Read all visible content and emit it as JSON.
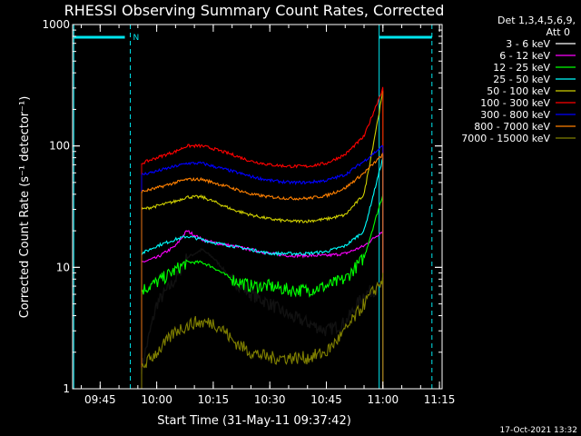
{
  "chart_data": {
    "type": "line",
    "title": "RHESSI Observing Summary Count Rates, Corrected",
    "xlabel": "Start Time (31-May-11 09:37:42)",
    "ylabel": "Corrected Count Rate (s⁻¹ detector⁻¹)",
    "yscale": "log",
    "ylim": [
      1,
      1000
    ],
    "xlim_minutes_after_0937": [
      0,
      98
    ],
    "x_ticks": [
      "09:45",
      "10:00",
      "10:15",
      "10:30",
      "10:45",
      "11:00",
      "11:15"
    ],
    "y_ticks": [
      "1",
      "10",
      "100",
      "1000"
    ],
    "legend_header": [
      "Det 1,3,4,5,6,9,",
      "Att 0"
    ],
    "footer_date": "17-Oct-2021 13:32",
    "night_marker": "N",
    "colors": {
      "background": "#000000",
      "axes": "#ffffff",
      "marker": "#00e5ee"
    },
    "series": [
      {
        "name": "3 - 6 keV",
        "color": "#000000",
        "x": [
          "09:56",
          "10:00",
          "10:05",
          "10:08",
          "10:12",
          "10:15",
          "10:20",
          "10:25",
          "10:30",
          "10:35",
          "10:40",
          "10:45",
          "10:50",
          "10:55",
          "11:00"
        ],
        "y": [
          1.5,
          5,
          8,
          12,
          14,
          12,
          8,
          6,
          5,
          4,
          3.5,
          3,
          3.5,
          6,
          7
        ]
      },
      {
        "name": "6 - 12 keV",
        "color": "#ff00ff",
        "x": [
          "09:56",
          "10:00",
          "10:05",
          "10:08",
          "10:12",
          "10:15",
          "10:20",
          "10:25",
          "10:30",
          "10:35",
          "10:40",
          "10:45",
          "10:50",
          "10:55",
          "11:00"
        ],
        "y": [
          11,
          12,
          15,
          20,
          17,
          16,
          15,
          14,
          13,
          12.5,
          12.5,
          12.5,
          13,
          15,
          20
        ]
      },
      {
        "name": "12 - 25 keV",
        "color": "#00ff00",
        "x": [
          "09:56",
          "10:00",
          "10:05",
          "10:08",
          "10:12",
          "10:15",
          "10:20",
          "10:25",
          "10:30",
          "10:35",
          "10:40",
          "10:45",
          "10:50",
          "10:55",
          "11:00"
        ],
        "y": [
          6.5,
          7.5,
          9.5,
          11,
          11,
          10,
          8,
          7,
          7,
          6.5,
          6.5,
          7,
          8,
          12,
          40
        ]
      },
      {
        "name": "25 - 50 keV",
        "color": "#00ffff",
        "x": [
          "09:56",
          "10:00",
          "10:05",
          "10:08",
          "10:12",
          "10:15",
          "10:20",
          "10:25",
          "10:30",
          "10:35",
          "10:40",
          "10:45",
          "10:50",
          "10:55",
          "11:00"
        ],
        "y": [
          13,
          15,
          17,
          18,
          17,
          16,
          15,
          14,
          13,
          13,
          13,
          13.5,
          15,
          20,
          80
        ]
      },
      {
        "name": "50 - 100 keV",
        "color": "#d0d000",
        "x": [
          "09:56",
          "10:00",
          "10:05",
          "10:08",
          "10:12",
          "10:15",
          "10:20",
          "10:25",
          "10:30",
          "10:35",
          "10:40",
          "10:45",
          "10:50",
          "10:55",
          "11:00"
        ],
        "y": [
          30,
          32,
          35,
          38,
          38,
          35,
          30,
          27,
          25,
          24,
          24,
          25,
          27,
          40,
          280
        ]
      },
      {
        "name": "100 - 300 keV",
        "color": "#ff0000",
        "x": [
          "09:56",
          "10:00",
          "10:05",
          "10:08",
          "10:12",
          "10:15",
          "10:20",
          "10:25",
          "10:30",
          "10:35",
          "10:40",
          "10:45",
          "10:50",
          "10:55",
          "11:00"
        ],
        "y": [
          72,
          80,
          90,
          100,
          100,
          95,
          85,
          75,
          70,
          68,
          68,
          72,
          85,
          120,
          300
        ]
      },
      {
        "name": "300 - 800 keV",
        "color": "#0000ff",
        "x": [
          "09:56",
          "10:00",
          "10:05",
          "10:08",
          "10:12",
          "10:15",
          "10:20",
          "10:25",
          "10:30",
          "10:35",
          "10:40",
          "10:45",
          "10:50",
          "10:55",
          "11:00"
        ],
        "y": [
          58,
          62,
          68,
          72,
          72,
          68,
          62,
          56,
          52,
          50,
          50,
          52,
          58,
          75,
          100
        ]
      },
      {
        "name": "800 - 7000 keV",
        "color": "#ff8000",
        "x": [
          "09:56",
          "10:00",
          "10:05",
          "10:08",
          "10:12",
          "10:15",
          "10:20",
          "10:25",
          "10:30",
          "10:35",
          "10:40",
          "10:45",
          "10:50",
          "10:55",
          "11:00"
        ],
        "y": [
          42,
          45,
          50,
          53,
          53,
          50,
          45,
          40,
          38,
          37,
          37,
          39,
          45,
          60,
          85
        ]
      },
      {
        "name": "7000 - 15000 keV",
        "color": "#808000",
        "x": [
          "09:56",
          "10:00",
          "10:03",
          "10:05",
          "10:10",
          "10:15",
          "10:18",
          "10:20",
          "10:25",
          "10:30",
          "10:35",
          "10:40",
          "10:45",
          "10:50",
          "10:55",
          "11:00"
        ],
        "y": [
          1.5,
          2,
          2.5,
          3,
          3.5,
          3.5,
          3,
          2.5,
          2,
          1.8,
          1.8,
          1.8,
          2,
          3,
          5,
          8
        ]
      }
    ]
  }
}
